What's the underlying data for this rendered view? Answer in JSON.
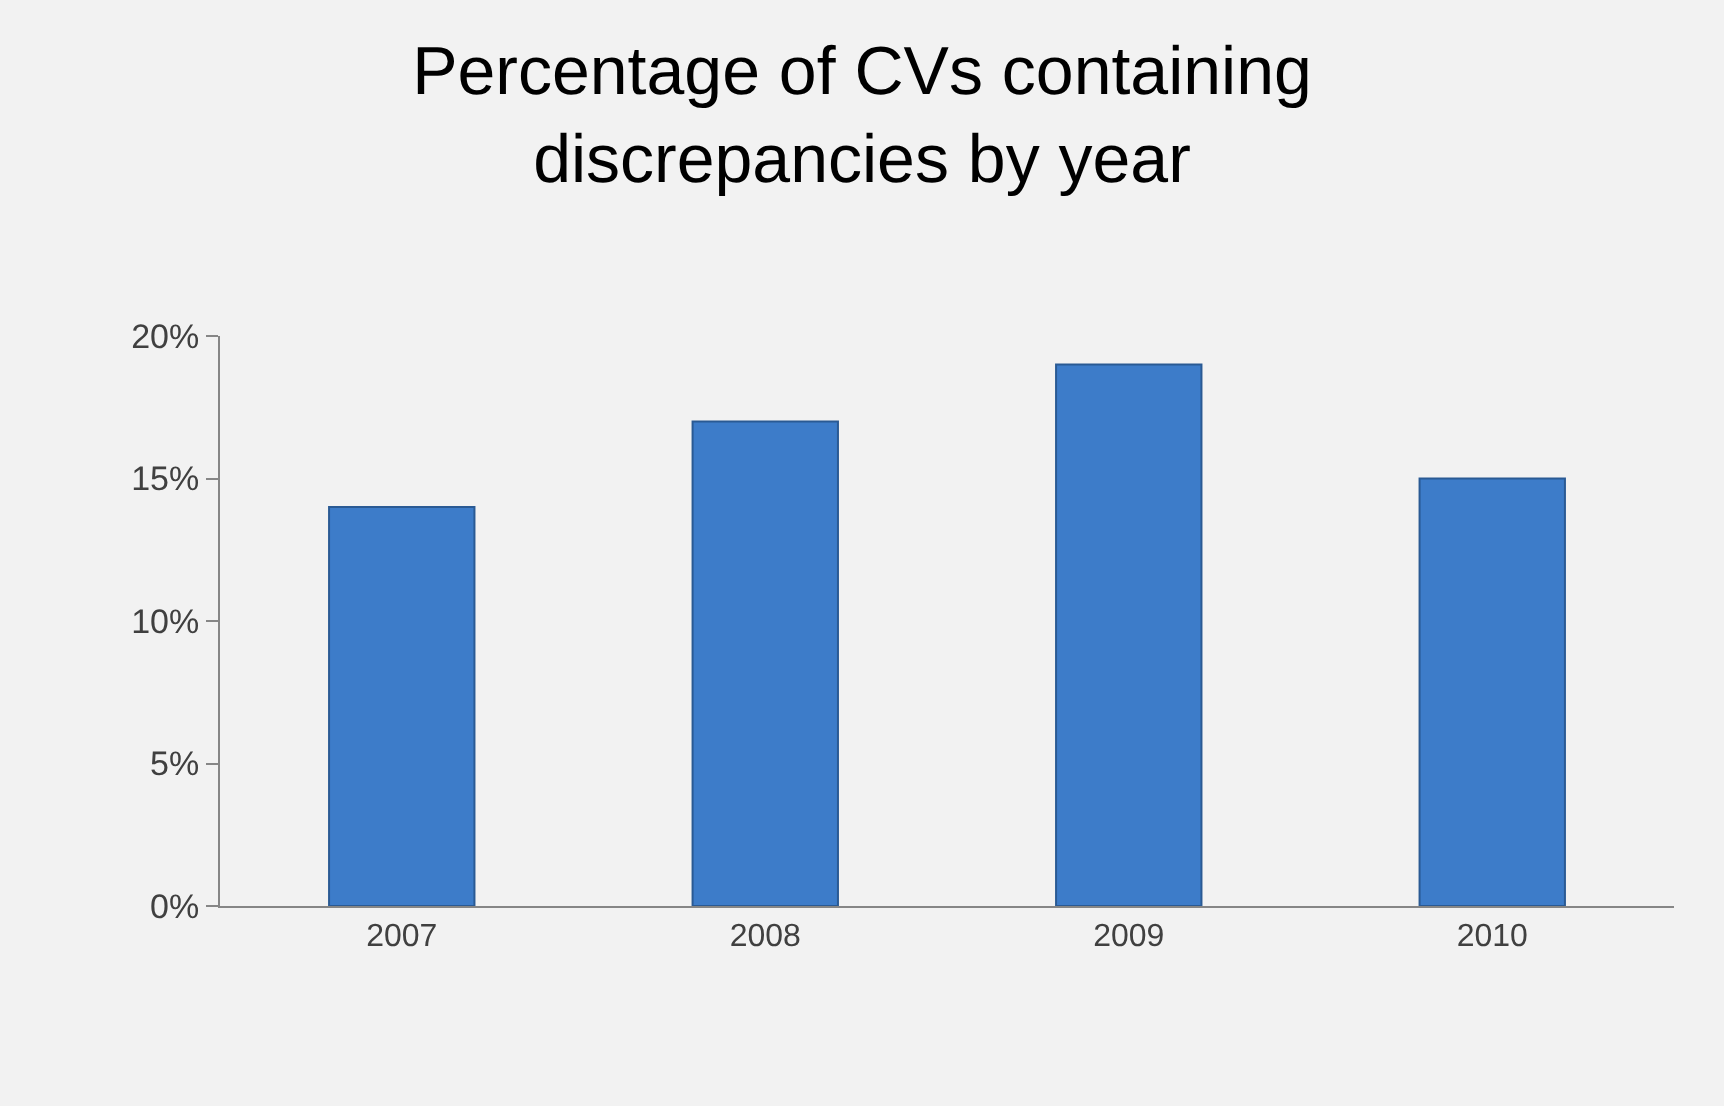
{
  "chart_data": {
    "type": "bar",
    "title": "Percentage of CVs containing\ndiscrepancies by year",
    "categories": [
      "2007",
      "2008",
      "2009",
      "2010"
    ],
    "values": [
      14,
      17,
      19,
      15
    ],
    "color": "#3d7cc9",
    "ylim": [
      0,
      20
    ],
    "yticks": [
      {
        "value": 0,
        "label": "0%"
      },
      {
        "value": 5,
        "label": "5%"
      },
      {
        "value": 10,
        "label": "10%"
      },
      {
        "value": 15,
        "label": "15%"
      },
      {
        "value": 20,
        "label": "20%"
      }
    ],
    "grid": false,
    "legend": false
  }
}
